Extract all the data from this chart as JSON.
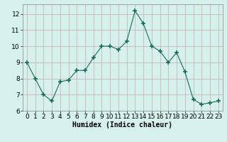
{
  "x": [
    0,
    1,
    2,
    3,
    4,
    5,
    6,
    7,
    8,
    9,
    10,
    11,
    12,
    13,
    14,
    15,
    16,
    17,
    18,
    19,
    20,
    21,
    22,
    23
  ],
  "y": [
    9.0,
    8.0,
    7.0,
    6.6,
    7.8,
    7.9,
    8.5,
    8.5,
    9.3,
    10.0,
    10.0,
    9.8,
    10.3,
    12.2,
    11.4,
    10.0,
    9.7,
    9.0,
    9.6,
    8.4,
    6.7,
    6.4,
    6.5,
    6.6
  ],
  "line_color": "#1a6b5a",
  "marker": "+",
  "marker_size": 4,
  "bg_color": "#d6f0ee",
  "grid_color": "#c4aaaa",
  "xlabel": "Humidex (Indice chaleur)",
  "ylim": [
    6,
    12.6
  ],
  "xlim": [
    -0.5,
    23.5
  ],
  "yticks": [
    6,
    7,
    8,
    9,
    10,
    11,
    12
  ],
  "xticks": [
    0,
    1,
    2,
    3,
    4,
    5,
    6,
    7,
    8,
    9,
    10,
    11,
    12,
    13,
    14,
    15,
    16,
    17,
    18,
    19,
    20,
    21,
    22,
    23
  ],
  "xlabel_fontsize": 7,
  "tick_fontsize": 6.5
}
